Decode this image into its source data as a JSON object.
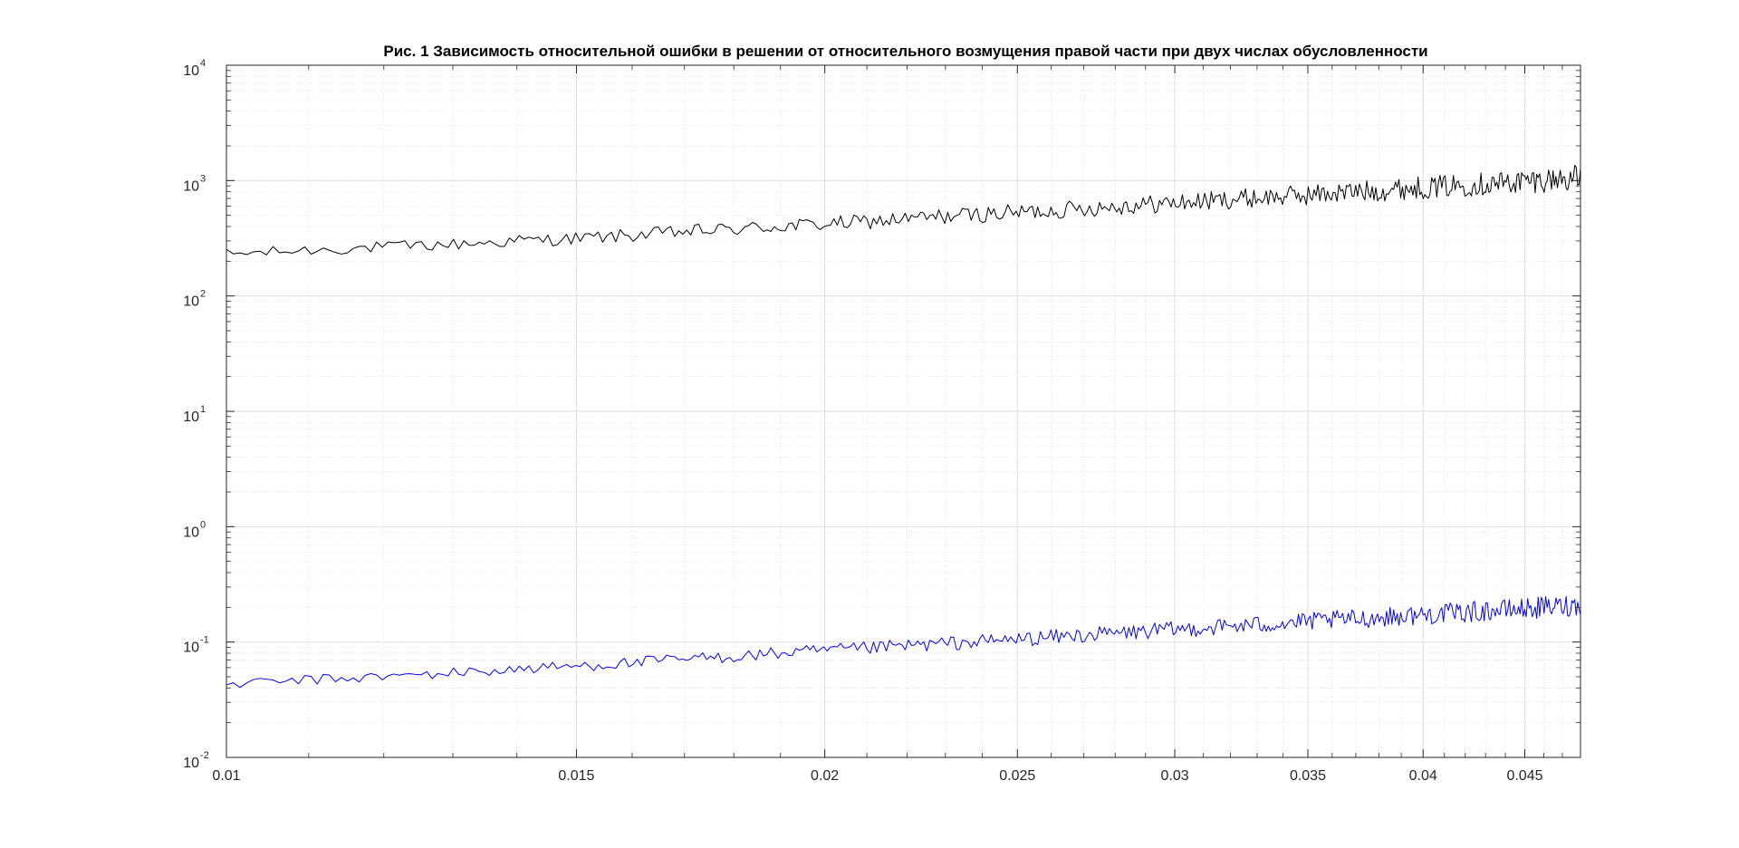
{
  "chart_data": {
    "type": "line",
    "title": "Рис. 1 Зависимость относительной ошибки в решении от относительного возмущения правой части при двух числах обусловленности",
    "xlabel": "",
    "ylabel": "",
    "x_scale": "log",
    "y_scale": "log",
    "xlim": [
      0.01,
      0.048
    ],
    "ylim": [
      0.01,
      10000
    ],
    "x_ticks": [
      0.01,
      0.015,
      0.02,
      0.025,
      0.03,
      0.035,
      0.04,
      0.045
    ],
    "x_tick_labels": [
      "0.01",
      "0.015",
      "0.02",
      "0.025",
      "0.03",
      "0.035",
      "0.04",
      "0.045"
    ],
    "y_ticks": [
      0.01,
      0.1,
      1,
      10,
      100,
      1000,
      10000
    ],
    "y_tick_labels": [
      {
        "base": "10",
        "exp": "-2"
      },
      {
        "base": "10",
        "exp": "-1"
      },
      {
        "base": "10",
        "exp": "0"
      },
      {
        "base": "10",
        "exp": "1"
      },
      {
        "base": "10",
        "exp": "2"
      },
      {
        "base": "10",
        "exp": "3"
      },
      {
        "base": "10",
        "exp": "4"
      }
    ],
    "grid": true,
    "minor_grid": true,
    "legend": "none",
    "series": [
      {
        "color": "#000000",
        "x": [
          0.01,
          0.011,
          0.012,
          0.013,
          0.014,
          0.015,
          0.016,
          0.017,
          0.018,
          0.019,
          0.02,
          0.021,
          0.022,
          0.023,
          0.024,
          0.025,
          0.026,
          0.027,
          0.028,
          0.029,
          0.03,
          0.031,
          0.032,
          0.033,
          0.034,
          0.035,
          0.036,
          0.037,
          0.038,
          0.039,
          0.04,
          0.041,
          0.042,
          0.043,
          0.044,
          0.045,
          0.046,
          0.047,
          0.048
        ],
        "y": [
          230,
          250,
          265,
          280,
          300,
          315,
          335,
          360,
          380,
          400,
          420,
          440,
          465,
          490,
          510,
          530,
          550,
          575,
          600,
          620,
          640,
          660,
          690,
          710,
          730,
          750,
          780,
          800,
          820,
          850,
          870,
          890,
          920,
          940,
          960,
          990,
          1010,
          1040,
          1060
        ],
        "noise": 0.08
      },
      {
        "color": "#0000ff",
        "x": [
          0.01,
          0.011,
          0.012,
          0.013,
          0.014,
          0.015,
          0.016,
          0.017,
          0.018,
          0.019,
          0.02,
          0.021,
          0.022,
          0.023,
          0.024,
          0.025,
          0.026,
          0.027,
          0.028,
          0.029,
          0.03,
          0.031,
          0.032,
          0.033,
          0.034,
          0.035,
          0.036,
          0.037,
          0.038,
          0.039,
          0.04,
          0.041,
          0.042,
          0.043,
          0.044,
          0.045,
          0.046,
          0.047,
          0.048
        ],
        "y": [
          0.043,
          0.047,
          0.05,
          0.054,
          0.058,
          0.062,
          0.066,
          0.071,
          0.075,
          0.08,
          0.084,
          0.088,
          0.093,
          0.097,
          0.101,
          0.106,
          0.11,
          0.115,
          0.119,
          0.124,
          0.128,
          0.133,
          0.137,
          0.141,
          0.146,
          0.15,
          0.155,
          0.159,
          0.163,
          0.168,
          0.172,
          0.177,
          0.181,
          0.186,
          0.19,
          0.195,
          0.2,
          0.205,
          0.21
        ],
        "noise": 0.07
      }
    ]
  }
}
